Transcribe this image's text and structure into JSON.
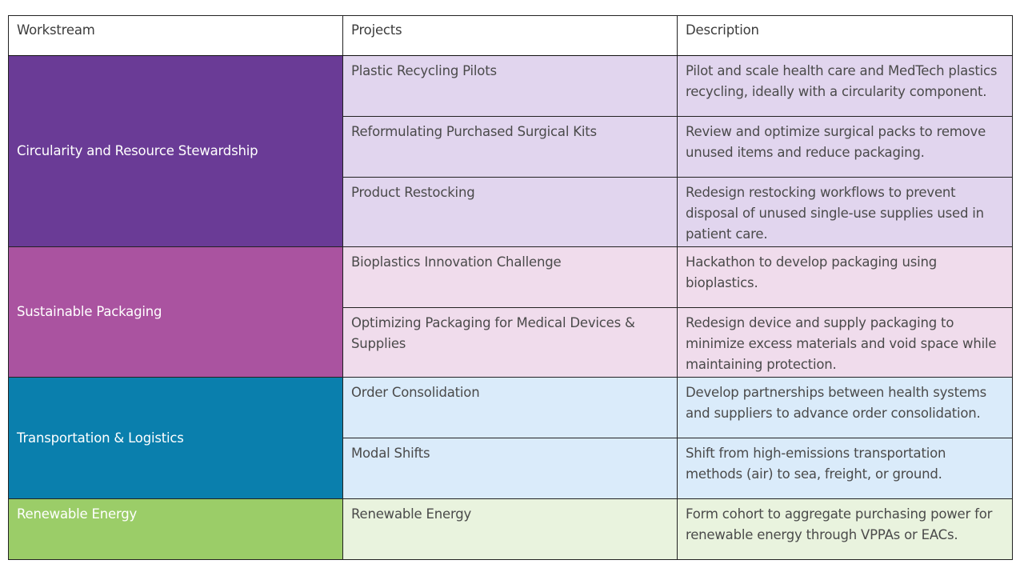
{
  "header": {
    "workstream": "Workstream",
    "projects": "Projects",
    "description": "Description"
  },
  "colors": {
    "circularity_dark": "#6a3b96",
    "circularity_light": "#e1d5ee",
    "packaging_dark": "#aa53a0",
    "packaging_light": "#f0dcec",
    "transport_dark": "#0a7fad",
    "transport_light": "#daebfa",
    "energy_dark": "#9bcd68",
    "energy_light": "#e9f3de"
  },
  "workstreams": [
    {
      "name": "Circularity and Resource Stewardship",
      "projects": [
        {
          "project": "Plastic Recycling Pilots",
          "description": "Pilot and scale health care and MedTech plastics recycling, ideally with a circularity component."
        },
        {
          "project": "Reformulating Purchased Surgical Kits",
          "description": "Review and optimize surgical packs to remove unused items and reduce packaging."
        },
        {
          "project": "Product Restocking",
          "description": "Redesign restocking workflows to prevent disposal of unused single-use supplies used in patient care."
        }
      ]
    },
    {
      "name": "Sustainable Packaging",
      "projects": [
        {
          "project": "Bioplastics Innovation Challenge",
          "description": "Hackathon to develop packaging using bioplastics."
        },
        {
          "project": "Optimizing Packaging for Medical Devices & Supplies",
          "description": "Redesign device and supply packaging to minimize excess materials and void space while maintaining protection."
        }
      ]
    },
    {
      "name": "Transportation & Logistics",
      "projects": [
        {
          "project": "Order Consolidation",
          "description": "Develop partnerships between health systems and suppliers to advance order consolidation."
        },
        {
          "project": "Modal Shifts",
          "description": "Shift from high-emissions transportation methods (air) to sea, freight, or ground."
        }
      ]
    },
    {
      "name": "Renewable Energy",
      "projects": [
        {
          "project": "Renewable Energy",
          "description": "Form cohort to aggregate purchasing power for renewable energy through VPPAs or EACs."
        }
      ]
    }
  ]
}
